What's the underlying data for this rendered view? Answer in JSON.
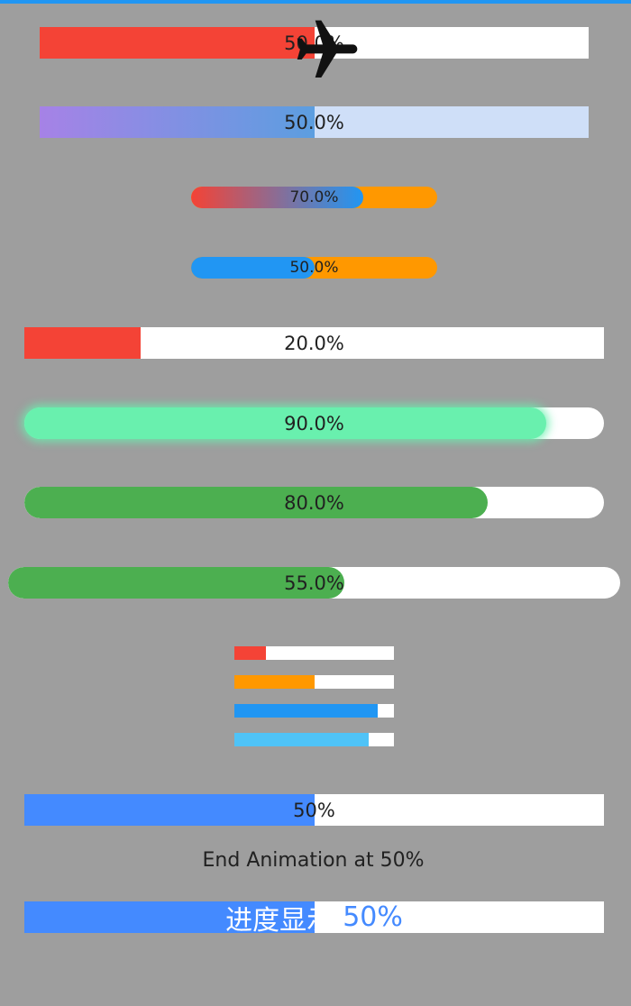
{
  "colors": {
    "background": "#9e9e9e",
    "red": "#f44336",
    "orange": "#ff9800",
    "blue": "#2196f3",
    "light_blue": "#4fc3f7",
    "green": "#4caf50",
    "mint": "#69f0ae",
    "accent_blue": "#448aff"
  },
  "bars": [
    {
      "id": "b1",
      "progress": 0.5,
      "label": "50.0%",
      "icon": "airplane-icon"
    },
    {
      "id": "b2",
      "progress": 0.5,
      "label": "50.0%"
    },
    {
      "id": "b3",
      "progress": 0.7,
      "label": "70.0%"
    },
    {
      "id": "b4",
      "progress": 0.5,
      "label": "50.0%"
    },
    {
      "id": "b5",
      "progress": 0.2,
      "label": "20.0%"
    },
    {
      "id": "b6",
      "progress": 0.9,
      "label": "90.0%"
    },
    {
      "id": "b7",
      "progress": 0.8,
      "label": "80.0%"
    },
    {
      "id": "b8",
      "progress": 0.55,
      "label": "55.0%"
    }
  ],
  "mini_bars": [
    {
      "id": "m1",
      "progress": 0.2
    },
    {
      "id": "m2",
      "progress": 0.5
    },
    {
      "id": "m3",
      "progress": 0.9
    },
    {
      "id": "m4",
      "progress": 0.84
    }
  ],
  "animated_bar": {
    "progress": 0.5,
    "label": "50%"
  },
  "animation_text": "End Animation at 50%",
  "chinese_bar": {
    "progress": 0.5,
    "label": "进度显示: 50%"
  }
}
